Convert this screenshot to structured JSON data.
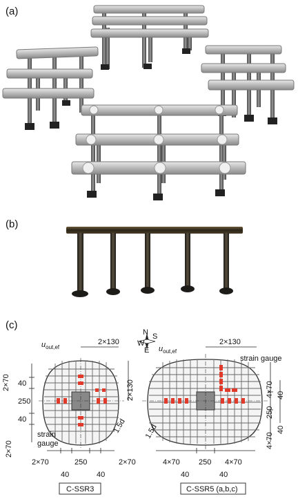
{
  "panels": {
    "a": "(a)",
    "b": "(b)",
    "c": "(c)"
  },
  "diagram": {
    "left": {
      "caption": "C-SSR3",
      "u_label_main": "u",
      "u_label_sub": "out,ef",
      "strain_gauge": [
        "strain",
        "gauge"
      ],
      "dim_top": "2×130",
      "dim_left": [
        "2×70",
        "40",
        "250",
        "40",
        "2×70"
      ],
      "dim_right": [
        "2×130"
      ],
      "dim_bottom": [
        "2×70",
        "250",
        "2×70"
      ],
      "dim_bottom_small": [
        "40",
        "40"
      ],
      "d_label": "1.5d"
    },
    "right": {
      "caption": "C-SSR5 (a,b,c)",
      "u_label_main": "u",
      "u_label_sub": "out,ef",
      "strain_gauge": "strain gauge",
      "dim_top": "2×130",
      "dim_right_outer": [
        "4×70",
        "250",
        "4×70"
      ],
      "dim_right_inner": [
        "40",
        "40"
      ],
      "dim_bottom": [
        "4×70",
        "250",
        "4×70"
      ],
      "dim_bottom_small": [
        "40",
        "40"
      ],
      "d_label": "1.5d"
    },
    "compass": {
      "n": "N",
      "s": "S",
      "e": "E",
      "w": "W"
    }
  }
}
